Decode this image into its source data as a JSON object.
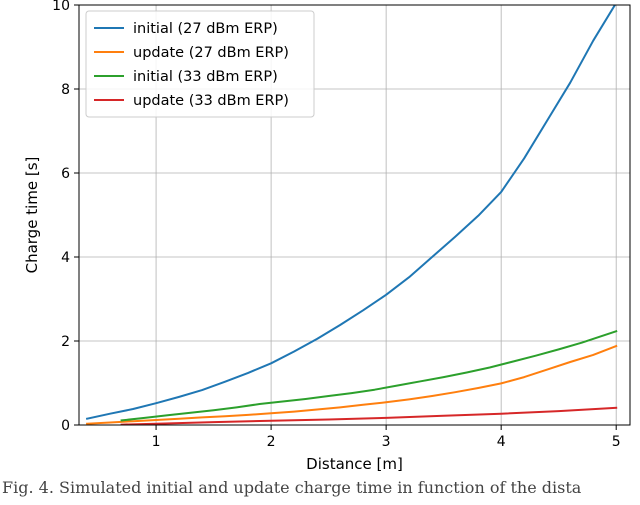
{
  "chart_data": {
    "type": "line",
    "xlabel": "Distance [m]",
    "ylabel": "Charge time [s]",
    "xlim": [
      0.33,
      5.12
    ],
    "ylim": [
      0,
      10
    ],
    "xticks": [
      1,
      2,
      3,
      4,
      5
    ],
    "yticks": [
      0,
      2,
      4,
      6,
      8,
      10
    ],
    "grid": true,
    "legend_position": "top-left",
    "series": [
      {
        "name": "initial (27 dBm ERP)",
        "color": "#1f77b4",
        "x": [
          0.4,
          0.6,
          0.8,
          1.0,
          1.2,
          1.4,
          1.6,
          1.8,
          2.0,
          2.2,
          2.4,
          2.6,
          2.8,
          3.0,
          3.2,
          3.4,
          3.6,
          3.8,
          4.0,
          4.2,
          4.4,
          4.6,
          4.8,
          5.0
        ],
        "y": [
          0.15,
          0.27,
          0.38,
          0.52,
          0.67,
          0.83,
          1.03,
          1.24,
          1.47,
          1.75,
          2.05,
          2.38,
          2.73,
          3.1,
          3.52,
          4.0,
          4.48,
          4.98,
          5.55,
          6.35,
          7.25,
          8.15,
          9.15,
          10.05
        ]
      },
      {
        "name": "update (27 dBm ERP)",
        "color": "#ff7f0e",
        "x": [
          0.4,
          0.6,
          0.8,
          1.0,
          1.2,
          1.4,
          1.6,
          1.8,
          2.0,
          2.2,
          2.4,
          2.6,
          2.8,
          3.0,
          3.2,
          3.4,
          3.6,
          3.8,
          4.0,
          4.2,
          4.4,
          4.6,
          4.8,
          5.0
        ],
        "y": [
          0.03,
          0.06,
          0.09,
          0.12,
          0.15,
          0.18,
          0.21,
          0.24,
          0.28,
          0.32,
          0.37,
          0.42,
          0.48,
          0.54,
          0.61,
          0.69,
          0.78,
          0.88,
          0.99,
          1.14,
          1.32,
          1.5,
          1.67,
          1.88
        ]
      },
      {
        "name": "initial (33 dBm ERP)",
        "color": "#2ca02c",
        "x": [
          0.7,
          0.9,
          1.1,
          1.3,
          1.5,
          1.7,
          1.9,
          2.1,
          2.3,
          2.5,
          2.7,
          2.9,
          3.1,
          3.3,
          3.5,
          3.7,
          3.9,
          4.1,
          4.3,
          4.5,
          4.7,
          4.9,
          5.0
        ],
        "y": [
          0.11,
          0.17,
          0.23,
          0.29,
          0.35,
          0.42,
          0.5,
          0.56,
          0.62,
          0.69,
          0.76,
          0.84,
          0.94,
          1.04,
          1.14,
          1.25,
          1.37,
          1.51,
          1.65,
          1.8,
          1.96,
          2.14,
          2.23
        ]
      },
      {
        "name": "update (33 dBm ERP)",
        "color": "#d62728",
        "x": [
          0.7,
          1.0,
          1.5,
          2.0,
          2.5,
          3.0,
          3.5,
          4.0,
          4.5,
          5.0
        ],
        "y": [
          0.01,
          0.03,
          0.07,
          0.1,
          0.13,
          0.17,
          0.22,
          0.27,
          0.33,
          0.41
        ]
      }
    ]
  },
  "caption": "Fig. 4.   Simulated initial and update charge time in function of the dista"
}
